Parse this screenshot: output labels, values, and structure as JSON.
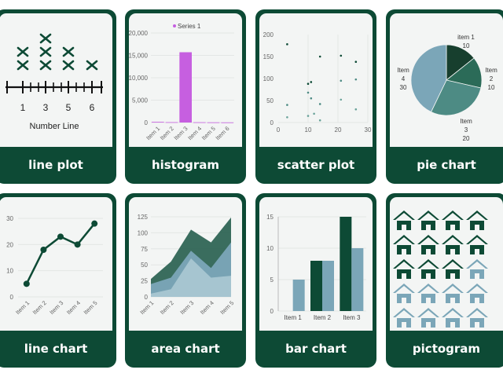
{
  "colors": {
    "dark_green": "#0d4a35",
    "mid_green": "#2b6b58",
    "teal": "#4d8b84",
    "light_blue": "#7ba6b8",
    "pale_blue": "#a9c7d2",
    "magenta": "#c65fe0"
  },
  "cards": [
    {
      "label": "line plot"
    },
    {
      "label": "histogram"
    },
    {
      "label": "scatter plot"
    },
    {
      "label": "pie chart"
    },
    {
      "label": "line chart"
    },
    {
      "label": "area chart"
    },
    {
      "label": "bar chart"
    },
    {
      "label": "pictogram"
    }
  ],
  "chart_data": [
    {
      "type": "line plot",
      "xlabel": "Number Line",
      "ticks": [
        "1",
        "3",
        "5",
        "6"
      ],
      "counts": [
        2,
        3,
        2,
        1
      ]
    },
    {
      "type": "bar",
      "legend": "Series 1",
      "categories": [
        "Item 1",
        "Item 2",
        "Item 3",
        "Item 4",
        "Item 5",
        "Item 6"
      ],
      "values": [
        150,
        80,
        15700,
        60,
        40,
        30
      ],
      "ylim": [
        0,
        20000
      ],
      "yticks": [
        "0",
        "5,000",
        "10,000",
        "15,000",
        "20,000"
      ]
    },
    {
      "type": "scatter",
      "xlim": [
        0,
        30
      ],
      "ylim": [
        0,
        200
      ],
      "xticks": [
        "0",
        "10",
        "20",
        "30"
      ],
      "yticks": [
        "0",
        "50",
        "100",
        "150",
        "200"
      ],
      "points": [
        [
          3,
          178
        ],
        [
          3,
          40
        ],
        [
          3,
          12
        ],
        [
          10,
          88
        ],
        [
          10,
          68
        ],
        [
          10,
          15
        ],
        [
          11,
          92
        ],
        [
          11,
          55
        ],
        [
          12,
          20
        ],
        [
          14,
          150
        ],
        [
          14,
          42
        ],
        [
          14,
          5
        ],
        [
          21,
          152
        ],
        [
          21,
          95
        ],
        [
          21,
          52
        ],
        [
          26,
          138
        ],
        [
          26,
          98
        ],
        [
          26,
          30
        ]
      ]
    },
    {
      "type": "pie",
      "slices": [
        {
          "label": "item 1",
          "value": "10"
        },
        {
          "label": "Item 2",
          "value": "10"
        },
        {
          "label": "Item 3",
          "value": "20"
        },
        {
          "label": "Item 4",
          "value": "30"
        }
      ]
    },
    {
      "type": "line",
      "categories": [
        "Item 1",
        "Item 2",
        "Item 3",
        "Item 4",
        "Item 5"
      ],
      "values": [
        5,
        18,
        23,
        20,
        28
      ],
      "ylim": [
        0,
        30
      ],
      "yticks": [
        "0",
        "10",
        "20",
        "30"
      ]
    },
    {
      "type": "area",
      "categories": [
        "Item 1",
        "Item 2",
        "Item 3",
        "Item 4",
        "Item 5"
      ],
      "ylim": [
        0,
        125
      ],
      "yticks": [
        "0",
        "25",
        "50",
        "75",
        "100",
        "125"
      ],
      "series": [
        {
          "values": [
            5,
            12,
            60,
            30,
            33
          ]
        },
        {
          "values": [
            20,
            30,
            72,
            45,
            85
          ]
        },
        {
          "values": [
            28,
            55,
            105,
            85,
            124
          ]
        }
      ]
    },
    {
      "type": "bar",
      "categories": [
        "Item 1",
        "Item 2",
        "Item 3"
      ],
      "ylim": [
        0,
        15
      ],
      "yticks": [
        "0",
        "5",
        "10",
        "15"
      ],
      "series": [
        {
          "values": [
            0,
            8,
            15
          ]
        },
        {
          "values": [
            5,
            8,
            10
          ]
        }
      ]
    },
    {
      "type": "pictogram",
      "rows": 5,
      "cols": 4,
      "dark_count": 11
    }
  ]
}
